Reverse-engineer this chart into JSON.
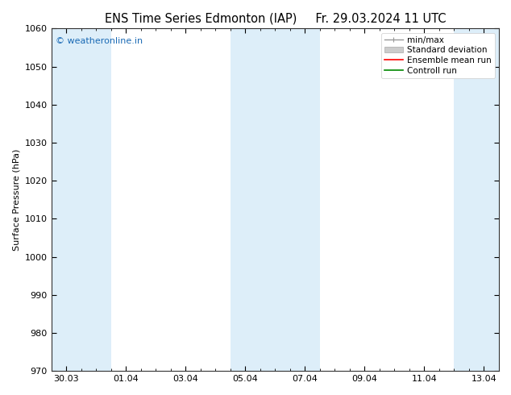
{
  "title_left": "ENS Time Series Edmonton (IAP)",
  "title_right": "Fr. 29.03.2024 11 UTC",
  "ylabel": "Surface Pressure (hPa)",
  "ylim": [
    970,
    1060
  ],
  "yticks": [
    970,
    980,
    990,
    1000,
    1010,
    1020,
    1030,
    1040,
    1050,
    1060
  ],
  "xlim": [
    -0.5,
    14.5
  ],
  "xtick_labels": [
    "30.03",
    "01.04",
    "03.04",
    "05.04",
    "07.04",
    "09.04",
    "11.04",
    "13.04"
  ],
  "xtick_positions": [
    0,
    2,
    4,
    6,
    8,
    10,
    12,
    14
  ],
  "shaded_bands": [
    {
      "x_start": -0.5,
      "x_end": 1.5,
      "color": "#ddeef9"
    },
    {
      "x_start": 5.5,
      "x_end": 8.5,
      "color": "#ddeef9"
    },
    {
      "x_start": 13.0,
      "x_end": 14.5,
      "color": "#ddeef9"
    }
  ],
  "watermark_text": "© weatheronline.in",
  "watermark_color": "#1a6ab5",
  "watermark_fontsize": 8,
  "bg_color": "#ffffff",
  "plot_bg_color": "#ffffff",
  "title_fontsize": 10.5,
  "axis_fontsize": 8,
  "tick_fontsize": 8,
  "legend_fontsize": 7.5,
  "minmax_color": "#999999",
  "std_color": "#cccccc",
  "ens_color": "#ff0000",
  "ctrl_color": "#008800"
}
